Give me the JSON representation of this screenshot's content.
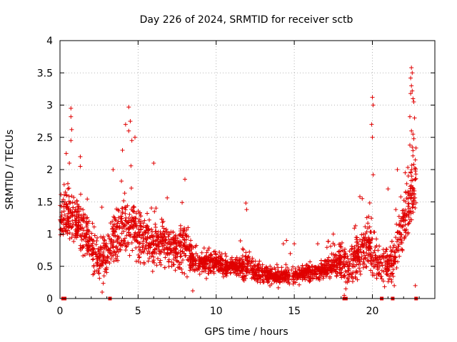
{
  "chart_data": {
    "type": "scatter",
    "title": "Day 226 of 2024, SRMTID for receiver sctb",
    "xlabel": "GPS time / hours",
    "ylabel": "SRMTID / TECUs",
    "xlim": [
      0,
      24
    ],
    "ylim": [
      0,
      4
    ],
    "xticks": [
      0,
      5,
      10,
      15,
      20
    ],
    "yticks": [
      0,
      0.5,
      1,
      1.5,
      2,
      2.5,
      3,
      3.5,
      4
    ],
    "xtick_labels": [
      "0",
      "5",
      "10",
      "15",
      "20"
    ],
    "ytick_labels": [
      "0",
      "0.5",
      "1",
      "1.5",
      "2",
      "2.5",
      "3",
      "3.5",
      "4"
    ],
    "grid": true,
    "marker": "plus",
    "color": "#e00000",
    "envelope": {
      "description": "approximate typical level (center) and spread of SRMTID values over time",
      "x": [
        0,
        0.5,
        1,
        1.5,
        2,
        2.5,
        3,
        3.5,
        4,
        4.5,
        5,
        5.5,
        6,
        6.5,
        7,
        7.5,
        8,
        8.5,
        9,
        9.5,
        10,
        10.5,
        11,
        11.5,
        12,
        12.5,
        13,
        13.5,
        14,
        14.5,
        15,
        15.5,
        16,
        16.5,
        17,
        17.5,
        18,
        18.5,
        19,
        19.5,
        20,
        20.5,
        21,
        21.5,
        22,
        22.5,
        22.8
      ],
      "center": [
        1.3,
        1.3,
        1.2,
        1.05,
        0.75,
        0.6,
        0.7,
        0.95,
        1.1,
        1.2,
        1.0,
        0.85,
        0.85,
        0.9,
        0.8,
        0.75,
        0.85,
        0.6,
        0.55,
        0.55,
        0.55,
        0.5,
        0.5,
        0.45,
        0.55,
        0.4,
        0.4,
        0.35,
        0.35,
        0.35,
        0.35,
        0.4,
        0.4,
        0.4,
        0.45,
        0.55,
        0.6,
        0.45,
        0.6,
        0.8,
        0.7,
        0.55,
        0.5,
        0.7,
        1.2,
        1.6,
        1.9
      ],
      "spread": [
        0.3,
        0.35,
        0.35,
        0.35,
        0.3,
        0.3,
        0.3,
        0.35,
        0.4,
        0.45,
        0.4,
        0.35,
        0.35,
        0.3,
        0.3,
        0.3,
        0.35,
        0.2,
        0.15,
        0.15,
        0.15,
        0.15,
        0.15,
        0.15,
        0.2,
        0.15,
        0.12,
        0.12,
        0.12,
        0.12,
        0.12,
        0.12,
        0.12,
        0.12,
        0.15,
        0.2,
        0.25,
        0.3,
        0.3,
        0.35,
        0.35,
        0.3,
        0.3,
        0.35,
        0.4,
        0.5,
        0.55
      ]
    },
    "highlight_points": [
      {
        "x": 0.7,
        "y": 2.95
      },
      {
        "x": 0.7,
        "y": 2.82
      },
      {
        "x": 0.75,
        "y": 2.62
      },
      {
        "x": 0.7,
        "y": 2.45
      },
      {
        "x": 0.4,
        "y": 2.25
      },
      {
        "x": 0.6,
        "y": 2.1
      },
      {
        "x": 1.3,
        "y": 2.2
      },
      {
        "x": 1.3,
        "y": 2.05
      },
      {
        "x": 4.4,
        "y": 2.97
      },
      {
        "x": 4.2,
        "y": 2.7
      },
      {
        "x": 4.5,
        "y": 2.75
      },
      {
        "x": 4.4,
        "y": 2.6
      },
      {
        "x": 4.8,
        "y": 2.5
      },
      {
        "x": 4.6,
        "y": 2.45
      },
      {
        "x": 3.4,
        "y": 2.0
      },
      {
        "x": 4.0,
        "y": 2.3
      },
      {
        "x": 6.0,
        "y": 2.1
      },
      {
        "x": 8.0,
        "y": 1.85
      },
      {
        "x": 11.9,
        "y": 1.48
      },
      {
        "x": 11.95,
        "y": 1.38
      },
      {
        "x": 14.3,
        "y": 0.85
      },
      {
        "x": 14.5,
        "y": 0.9
      },
      {
        "x": 15.0,
        "y": 0.85
      },
      {
        "x": 16.5,
        "y": 0.85
      },
      {
        "x": 17.5,
        "y": 1.0
      },
      {
        "x": 19.2,
        "y": 1.58
      },
      {
        "x": 19.35,
        "y": 1.55
      },
      {
        "x": 20.0,
        "y": 3.12
      },
      {
        "x": 20.05,
        "y": 3.0
      },
      {
        "x": 19.95,
        "y": 2.7
      },
      {
        "x": 20.0,
        "y": 2.5
      },
      {
        "x": 20.05,
        "y": 1.92
      },
      {
        "x": 21.0,
        "y": 1.7
      },
      {
        "x": 21.6,
        "y": 2.0
      },
      {
        "x": 22.5,
        "y": 3.58
      },
      {
        "x": 22.55,
        "y": 3.5
      },
      {
        "x": 22.45,
        "y": 3.42
      },
      {
        "x": 22.5,
        "y": 3.3
      },
      {
        "x": 22.55,
        "y": 3.22
      },
      {
        "x": 22.45,
        "y": 3.18
      },
      {
        "x": 22.6,
        "y": 3.1
      },
      {
        "x": 22.65,
        "y": 3.05
      },
      {
        "x": 22.4,
        "y": 2.82
      },
      {
        "x": 22.7,
        "y": 2.8
      },
      {
        "x": 22.5,
        "y": 2.6
      },
      {
        "x": 22.6,
        "y": 2.55
      },
      {
        "x": 22.4,
        "y": 2.38
      },
      {
        "x": 22.55,
        "y": 2.35
      },
      {
        "x": 22.75,
        "y": 2.15
      },
      {
        "x": 22.65,
        "y": 2.08
      },
      {
        "x": 22.1,
        "y": 1.95
      },
      {
        "x": 22.3,
        "y": 1.9
      },
      {
        "x": 22.2,
        "y": 1.78
      },
      {
        "x": 22.5,
        "y": 1.75
      },
      {
        "x": 22.75,
        "y": 0.2
      },
      {
        "x": 8.5,
        "y": 0.12
      },
      {
        "x": 18.2,
        "y": 0.05
      },
      {
        "x": 18.3,
        "y": 0.15
      },
      {
        "x": 2.7,
        "y": 0.1
      },
      {
        "x": 21.4,
        "y": 0.2
      }
    ],
    "zero_markers_x": [
      0.2,
      0.3,
      3.2,
      18.2,
      18.3,
      20.6,
      21.3,
      22.8
    ]
  }
}
